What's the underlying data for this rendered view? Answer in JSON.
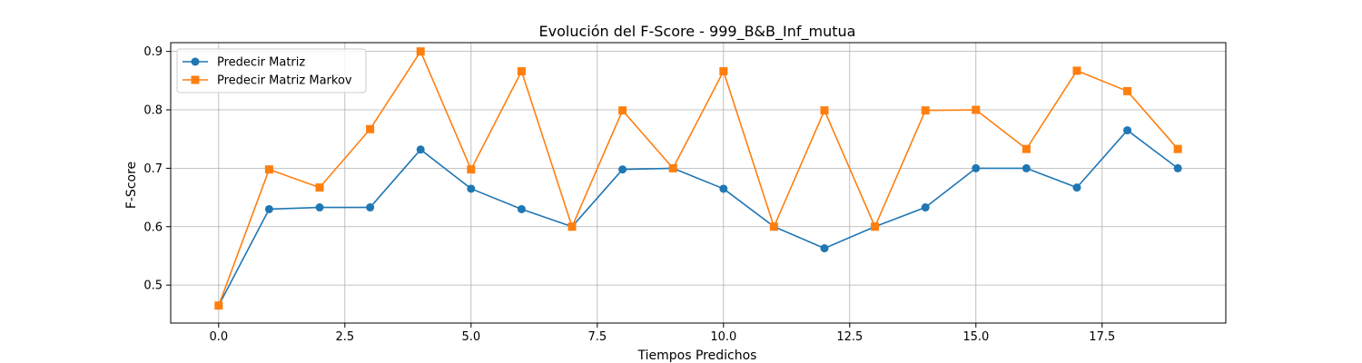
{
  "chart_data": {
    "type": "line",
    "title": "Evolución del F-Score - 999_B&B_Inf_mutua",
    "xlabel": "Tiempos Predichos",
    "ylabel": "F-Score",
    "x": [
      0,
      1,
      2,
      3,
      4,
      5,
      6,
      7,
      8,
      9,
      10,
      11,
      12,
      13,
      14,
      15,
      16,
      17,
      18,
      19
    ],
    "xlim": [
      -0.95,
      19.95
    ],
    "ylim": [
      0.435,
      0.915
    ],
    "xticks": [
      0.0,
      2.5,
      5.0,
      7.5,
      10.0,
      12.5,
      15.0,
      17.5
    ],
    "xtick_labels": [
      "0.0",
      "2.5",
      "5.0",
      "7.5",
      "10.0",
      "12.5",
      "15.0",
      "17.5"
    ],
    "yticks": [
      0.5,
      0.6,
      0.7,
      0.8,
      0.9
    ],
    "ytick_labels": [
      "0.5",
      "0.6",
      "0.7",
      "0.8",
      "0.9"
    ],
    "grid": true,
    "legend_position": "top-left",
    "series": [
      {
        "name": "Predecir Matriz",
        "color": "#1f77b4",
        "marker": "circle",
        "values": [
          0.465,
          0.63,
          0.633,
          0.633,
          0.732,
          0.665,
          0.63,
          0.6,
          0.698,
          0.7,
          0.665,
          0.6,
          0.563,
          0.6,
          0.633,
          0.7,
          0.7,
          0.667,
          0.765,
          0.7
        ]
      },
      {
        "name": "Predecir Matriz Markov",
        "color": "#ff7f0e",
        "marker": "square",
        "values": [
          0.465,
          0.698,
          0.667,
          0.767,
          0.9,
          0.698,
          0.866,
          0.6,
          0.799,
          0.7,
          0.866,
          0.6,
          0.799,
          0.6,
          0.799,
          0.8,
          0.733,
          0.867,
          0.832,
          0.733
        ]
      }
    ]
  }
}
